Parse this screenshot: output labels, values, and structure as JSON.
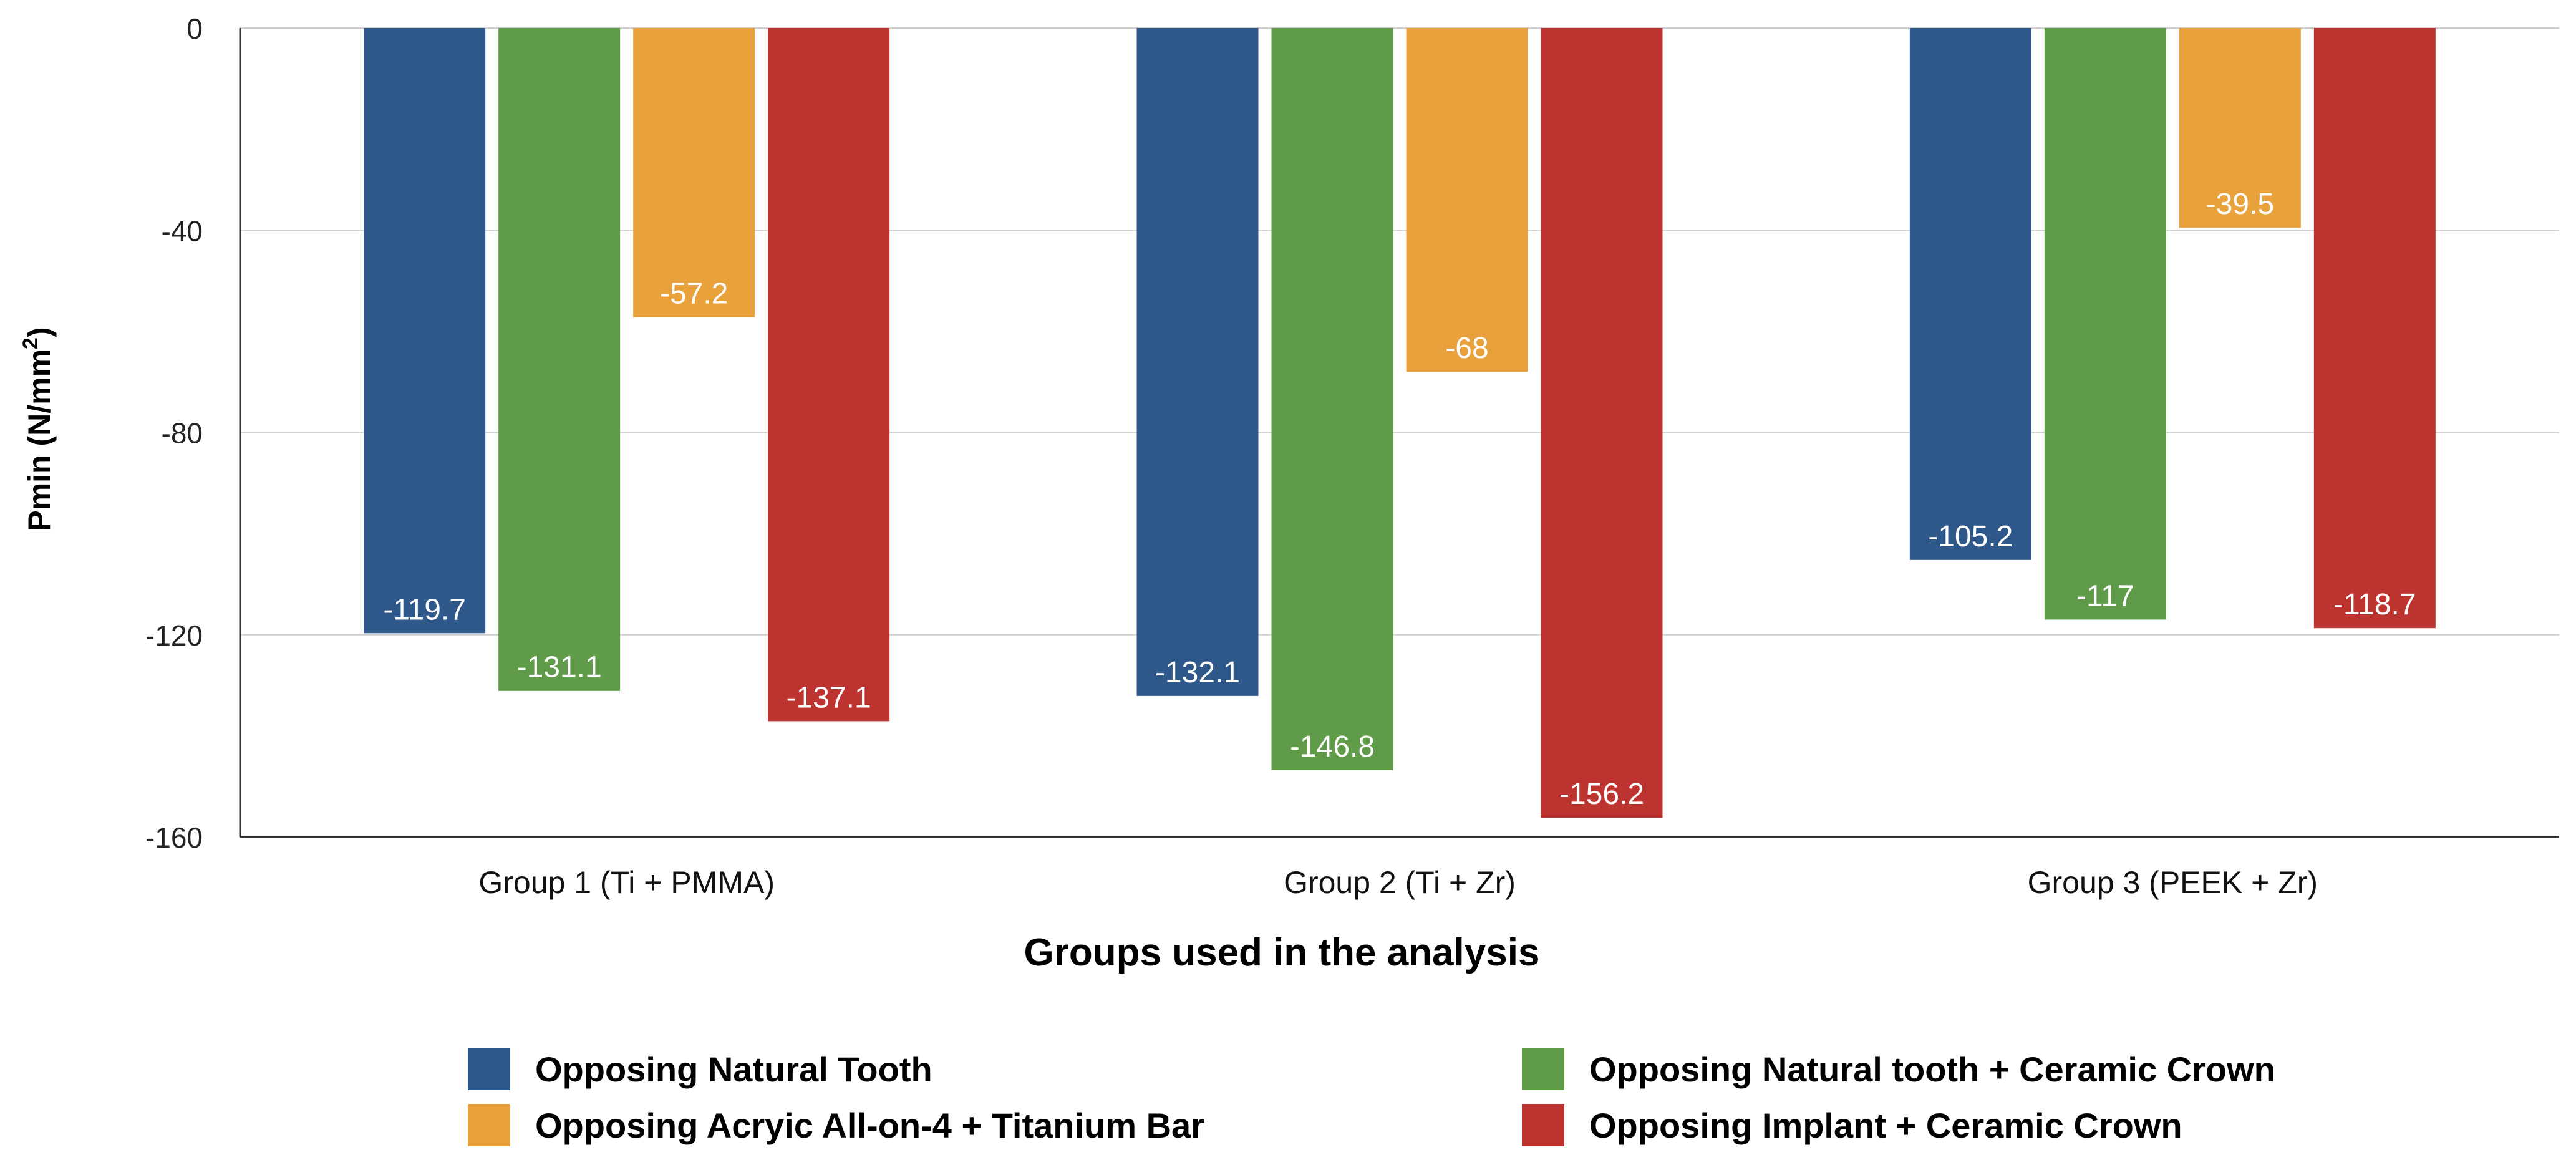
{
  "chart_data": {
    "type": "bar",
    "title": "",
    "xlabel": "Groups used in the analysis",
    "ylabel": "Pmin (N/mm",
    "ylabel_superscript": "2",
    "ylabel_suffix": ")",
    "ylim": [
      -160,
      0
    ],
    "yticks": [
      0,
      -40,
      -80,
      -120,
      -160
    ],
    "grid": true,
    "legend_position": "bottom",
    "categories": [
      "Group 1 (Ti + PMMA)",
      "Group 2 (Ti + Zr)",
      "Group 3 (PEEK + Zr)"
    ],
    "series": [
      {
        "name": "Opposing Natural Tooth",
        "color": "#2e578a",
        "values": [
          -119.7,
          -132.1,
          -105.2
        ]
      },
      {
        "name": "Opposing Natural tooth + Ceramic Crown",
        "color": "#5f9b48",
        "values": [
          -131.1,
          -146.8,
          -117
        ]
      },
      {
        "name": "Opposing Acryic All-on-4 + Titanium Bar",
        "color": "#e9a23b",
        "values": [
          -57.2,
          -68,
          -39.5
        ]
      },
      {
        "name": "Opposing Implant + Ceramic Crown",
        "color": "#bd3330",
        "values": [
          -137.1,
          -156.2,
          -118.7
        ]
      }
    ]
  }
}
